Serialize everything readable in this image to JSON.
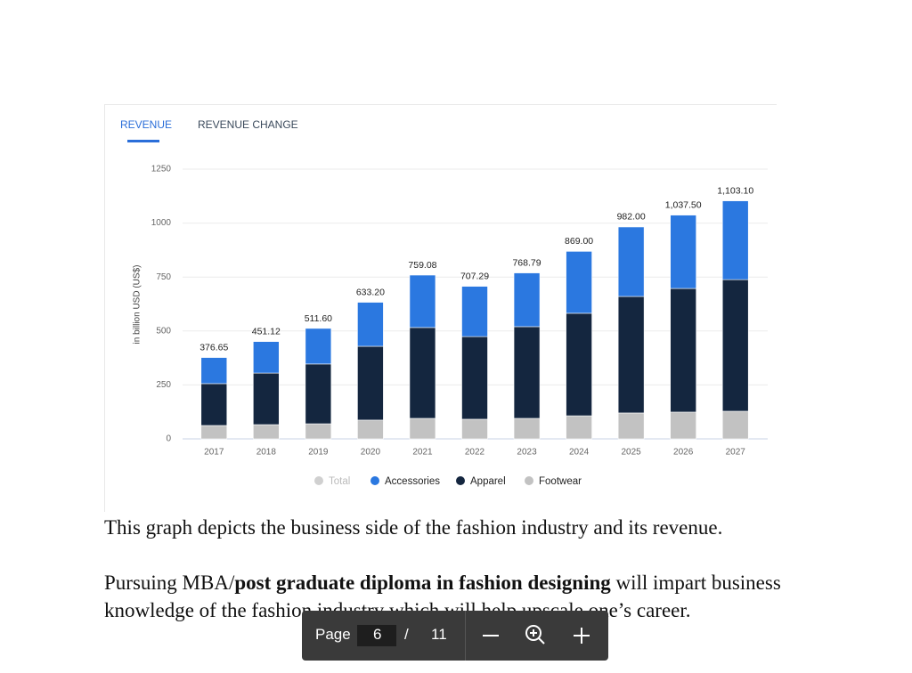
{
  "tabs": [
    "REVENUE",
    "REVENUE CHANGE"
  ],
  "chart_data": {
    "type": "bar",
    "stacked": true,
    "ylabel": "in billion USD (US$)",
    "categories": [
      "2017",
      "2018",
      "2019",
      "2020",
      "2021",
      "2022",
      "2023",
      "2024",
      "2025",
      "2026",
      "2027"
    ],
    "series": [
      {
        "name": "Total",
        "color": "#c8c8c8",
        "hidden": true,
        "values": [
          376.65,
          451.12,
          511.6,
          633.2,
          759.08,
          707.29,
          768.79,
          869,
          982,
          1037.5,
          1103.1
        ],
        "value_labels": [
          "376.65",
          "451.12",
          "511.60",
          "633.20",
          "759.08",
          "707.29",
          "768.79",
          "869.00",
          "982.00",
          "1,037.50",
          "1,103.10"
        ]
      },
      {
        "name": "Accessories",
        "color": "#2b78e0",
        "values": [
          121,
          146,
          165,
          204,
          243,
          233,
          249,
          287,
          322,
          340,
          365
        ]
      },
      {
        "name": "Apparel",
        "color": "#14263f",
        "values": [
          194,
          239,
          277,
          342,
          421,
          383,
          425,
          475,
          540,
          573,
          610
        ]
      },
      {
        "name": "Footwear",
        "color": "#c2c2c2",
        "values": [
          62,
          66,
          70,
          87,
          95,
          91,
          95,
          107,
          120,
          124,
          128
        ]
      }
    ],
    "ylim": [
      0,
      1250
    ],
    "yticks": [
      0,
      250,
      500,
      750,
      1000,
      1250
    ],
    "grid": true
  },
  "document": {
    "paragraph_1": "This graph depicts the business side of the fashion industry and its revenue.",
    "paragraph_2": [
      "Pursuing MBA/",
      "post graduate diploma in fashion designing",
      " will impart business knowledge of the fashion industry which will help upscale one’s career."
    ]
  },
  "toolbar": {
    "page_label": "Page",
    "current_page": 6,
    "separator": "/",
    "total_pages": 11
  }
}
